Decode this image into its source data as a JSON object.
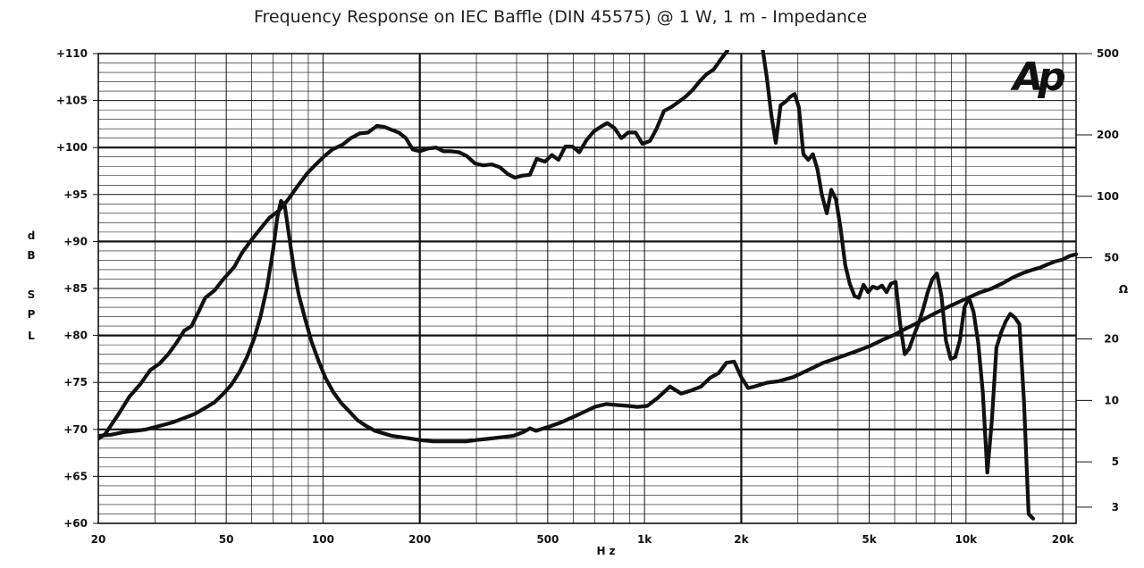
{
  "chart_data": {
    "type": "line",
    "title": "Frequency Response on IEC Baffle (DIN 45575) @ 1 W, 1 m - Impedance",
    "xlabel": "Hz",
    "ylabel_left": [
      "d",
      "B",
      "",
      "S",
      "P",
      "L"
    ],
    "ylabel_right": "Ω",
    "x_scale": "log",
    "xlim": [
      20,
      22000
    ],
    "ylim_left": [
      60,
      110
    ],
    "ylim_right_log": [
      2.5,
      500
    ],
    "grid": true,
    "x_tick_labels": [
      {
        "v": 20,
        "t": "20"
      },
      {
        "v": 50,
        "t": "50"
      },
      {
        "v": 100,
        "t": "100"
      },
      {
        "v": 200,
        "t": "200"
      },
      {
        "v": 500,
        "t": "500"
      },
      {
        "v": 1000,
        "t": "1k"
      },
      {
        "v": 2000,
        "t": "2k"
      },
      {
        "v": 5000,
        "t": "5k"
      },
      {
        "v": 10000,
        "t": "10k"
      },
      {
        "v": 20000,
        "t": "20k"
      }
    ],
    "y_left_tick_labels": [
      {
        "v": 110,
        "t": "+110"
      },
      {
        "v": 105,
        "t": "+105"
      },
      {
        "v": 100,
        "t": "+100"
      },
      {
        "v": 95,
        "t": "+95"
      },
      {
        "v": 90,
        "t": "+90"
      },
      {
        "v": 85,
        "t": "+85"
      },
      {
        "v": 80,
        "t": "+80"
      },
      {
        "v": 75,
        "t": "+75"
      },
      {
        "v": 70,
        "t": "+70"
      },
      {
        "v": 65,
        "t": "+65"
      },
      {
        "v": 60,
        "t": "+60"
      }
    ],
    "y_right_tick_labels": [
      {
        "v": 500,
        "t": "500"
      },
      {
        "v": 200,
        "t": "200"
      },
      {
        "v": 100,
        "t": "100"
      },
      {
        "v": 50,
        "t": "50"
      },
      {
        "v": 20,
        "t": "20"
      },
      {
        "v": 10,
        "t": "10"
      },
      {
        "v": 5,
        "t": "5"
      },
      {
        "v": 3,
        "t": "3"
      }
    ],
    "logo_text": "Ap",
    "series": [
      {
        "axis": "left",
        "points": [
          [
            20,
            69
          ],
          [
            21,
            69.5
          ],
          [
            23,
            71.5
          ],
          [
            25,
            73.5
          ],
          [
            27,
            74.8
          ],
          [
            29,
            76.3
          ],
          [
            31,
            77
          ],
          [
            33,
            78
          ],
          [
            35,
            79.2
          ],
          [
            37,
            80.5
          ],
          [
            39,
            81
          ],
          [
            41,
            82.5
          ],
          [
            43,
            84
          ],
          [
            46,
            84.8
          ],
          [
            49,
            86
          ],
          [
            53,
            87.3
          ],
          [
            56,
            88.8
          ],
          [
            60,
            90.2
          ],
          [
            64,
            91.4
          ],
          [
            68,
            92.5
          ],
          [
            73,
            93.3
          ],
          [
            78,
            94.5
          ],
          [
            83,
            95.8
          ],
          [
            89,
            97.2
          ],
          [
            95,
            98.2
          ],
          [
            101,
            99.1
          ],
          [
            107,
            99.8
          ],
          [
            115,
            100.3
          ],
          [
            122,
            101
          ],
          [
            130,
            101.5
          ],
          [
            138,
            101.6
          ],
          [
            147,
            102.3
          ],
          [
            155,
            102.2
          ],
          [
            163,
            101.9
          ],
          [
            172,
            101.6
          ],
          [
            181,
            101
          ],
          [
            190,
            99.8
          ],
          [
            200,
            99.6
          ],
          [
            212,
            99.9
          ],
          [
            225,
            100
          ],
          [
            237,
            99.6
          ],
          [
            250,
            99.6
          ],
          [
            265,
            99.5
          ],
          [
            280,
            99.1
          ],
          [
            297,
            98.3
          ],
          [
            315,
            98.1
          ],
          [
            335,
            98.2
          ],
          [
            355,
            97.9
          ],
          [
            375,
            97.2
          ],
          [
            395,
            96.8
          ],
          [
            415,
            97
          ],
          [
            440,
            97.1
          ],
          [
            462,
            98.8
          ],
          [
            490,
            98.5
          ],
          [
            515,
            99.2
          ],
          [
            540,
            98.7
          ],
          [
            567,
            100.1
          ],
          [
            597,
            100.1
          ],
          [
            627,
            99.5
          ],
          [
            660,
            100.8
          ],
          [
            695,
            101.7
          ],
          [
            730,
            102.2
          ],
          [
            765,
            102.6
          ],
          [
            805,
            102.1
          ],
          [
            847,
            101
          ],
          [
            890,
            101.6
          ],
          [
            938,
            101.6
          ],
          [
            985,
            100.4
          ],
          [
            1040,
            100.7
          ],
          [
            1090,
            102
          ],
          [
            1150,
            103.9
          ],
          [
            1210,
            104.3
          ],
          [
            1270,
            104.8
          ],
          [
            1340,
            105.4
          ],
          [
            1410,
            106.1
          ],
          [
            1480,
            107
          ],
          [
            1560,
            107.8
          ],
          [
            1640,
            108.3
          ],
          [
            1720,
            109.3
          ],
          [
            1810,
            110.3
          ]
        ]
      },
      {
        "axis": "left",
        "points": [
          [
            2330,
            110.5
          ],
          [
            2400,
            107.5
          ],
          [
            2480,
            103.5
          ],
          [
            2560,
            100.5
          ],
          [
            2650,
            104.5
          ],
          [
            2750,
            104.9
          ],
          [
            2840,
            105.4
          ],
          [
            2930,
            105.7
          ],
          [
            3020,
            104.3
          ],
          [
            3120,
            99.3
          ],
          [
            3230,
            98.7
          ],
          [
            3340,
            99.3
          ],
          [
            3450,
            97.7
          ],
          [
            3560,
            95
          ],
          [
            3690,
            93
          ],
          [
            3810,
            95.5
          ],
          [
            3940,
            94.5
          ],
          [
            4070,
            91.5
          ],
          [
            4210,
            87.5
          ],
          [
            4350,
            85.5
          ],
          [
            4500,
            84.2
          ],
          [
            4640,
            84
          ],
          [
            4800,
            85.4
          ],
          [
            4960,
            84.6
          ],
          [
            5130,
            85.2
          ],
          [
            5300,
            85
          ],
          [
            5480,
            85.3
          ],
          [
            5660,
            84.6
          ],
          [
            5840,
            85.5
          ],
          [
            6040,
            85.7
          ],
          [
            6240,
            81.2
          ],
          [
            6450,
            78
          ],
          [
            6660,
            78.6
          ],
          [
            6890,
            80
          ],
          [
            7120,
            81.3
          ],
          [
            7360,
            82.8
          ],
          [
            7600,
            84.6
          ],
          [
            7860,
            86
          ],
          [
            8120,
            86.6
          ],
          [
            8390,
            84.2
          ],
          [
            8670,
            79.4
          ],
          [
            8960,
            77.5
          ],
          [
            9260,
            77.7
          ],
          [
            9570,
            79.5
          ],
          [
            9890,
            83
          ],
          [
            10220,
            84
          ],
          [
            10560,
            82.5
          ],
          [
            10910,
            79.3
          ],
          [
            11280,
            74
          ],
          [
            11650,
            65.4
          ],
          [
            12040,
            71
          ],
          [
            12440,
            78.7
          ],
          [
            12860,
            80.3
          ],
          [
            13290,
            81.5
          ],
          [
            13730,
            82.3
          ],
          [
            14190,
            81.9
          ],
          [
            14660,
            81.2
          ],
          [
            15150,
            73
          ],
          [
            15660,
            61
          ],
          [
            16180,
            60.5
          ]
        ]
      },
      {
        "axis": "right",
        "points": [
          [
            20,
            6.7
          ],
          [
            22,
            6.8
          ],
          [
            24,
            7
          ],
          [
            26,
            7.1
          ],
          [
            28,
            7.2
          ],
          [
            30,
            7.4
          ],
          [
            32,
            7.6
          ],
          [
            34,
            7.8
          ],
          [
            37,
            8.2
          ],
          [
            40,
            8.6
          ],
          [
            43,
            9.2
          ],
          [
            46,
            9.8
          ],
          [
            49,
            10.8
          ],
          [
            52,
            12
          ],
          [
            55,
            13.8
          ],
          [
            58,
            16.3
          ],
          [
            61,
            20
          ],
          [
            64,
            26
          ],
          [
            67,
            36
          ],
          [
            70,
            55
          ],
          [
            72,
            78
          ],
          [
            74,
            95
          ],
          [
            76,
            90
          ],
          [
            78,
            68
          ],
          [
            81,
            45
          ],
          [
            84,
            33
          ],
          [
            88,
            25
          ],
          [
            92,
            19.5
          ],
          [
            97,
            15.5
          ],
          [
            102,
            12.8
          ],
          [
            108,
            10.9
          ],
          [
            114,
            9.7
          ],
          [
            121,
            8.8
          ],
          [
            128,
            8
          ],
          [
            136,
            7.5
          ],
          [
            145,
            7.1
          ],
          [
            154,
            6.9
          ],
          [
            164,
            6.7
          ],
          [
            175,
            6.6
          ],
          [
            187,
            6.5
          ],
          [
            200,
            6.4
          ],
          [
            220,
            6.3
          ],
          [
            240,
            6.3
          ],
          [
            260,
            6.3
          ],
          [
            280,
            6.3
          ],
          [
            300,
            6.4
          ],
          [
            330,
            6.5
          ],
          [
            360,
            6.6
          ],
          [
            390,
            6.7
          ],
          [
            420,
            7
          ],
          [
            440,
            7.3
          ],
          [
            460,
            7.1
          ],
          [
            500,
            7.4
          ],
          [
            550,
            7.8
          ],
          [
            600,
            8.3
          ],
          [
            650,
            8.8
          ],
          [
            700,
            9.3
          ],
          [
            760,
            9.6
          ],
          [
            820,
            9.5
          ],
          [
            890,
            9.4
          ],
          [
            950,
            9.3
          ],
          [
            1020,
            9.4
          ],
          [
            1100,
            10.3
          ],
          [
            1200,
            11.7
          ],
          [
            1300,
            10.8
          ],
          [
            1400,
            11.2
          ],
          [
            1500,
            11.7
          ],
          [
            1600,
            12.9
          ],
          [
            1700,
            13.6
          ],
          [
            1800,
            15.3
          ],
          [
            1900,
            15.5
          ],
          [
            2000,
            13
          ],
          [
            2100,
            11.5
          ],
          [
            2200,
            11.7
          ],
          [
            2400,
            12.2
          ],
          [
            2600,
            12.4
          ],
          [
            2900,
            13
          ],
          [
            3200,
            14
          ],
          [
            3600,
            15.3
          ],
          [
            4000,
            16.2
          ],
          [
            4500,
            17.3
          ],
          [
            5000,
            18.4
          ],
          [
            5500,
            19.8
          ],
          [
            6000,
            21
          ],
          [
            6500,
            22.5
          ],
          [
            7000,
            23.8
          ],
          [
            7500,
            25.3
          ],
          [
            8000,
            26.7
          ],
          [
            8500,
            28
          ],
          [
            9000,
            29.2
          ],
          [
            10000,
            31.5
          ],
          [
            11000,
            33.7
          ],
          [
            12000,
            35.3
          ],
          [
            13000,
            37.5
          ],
          [
            14000,
            40
          ],
          [
            15000,
            42
          ],
          [
            16000,
            43.5
          ],
          [
            17000,
            44.7
          ],
          [
            18000,
            46.5
          ],
          [
            19000,
            48
          ],
          [
            20000,
            49
          ],
          [
            21000,
            51
          ],
          [
            22000,
            52
          ]
        ]
      }
    ]
  }
}
